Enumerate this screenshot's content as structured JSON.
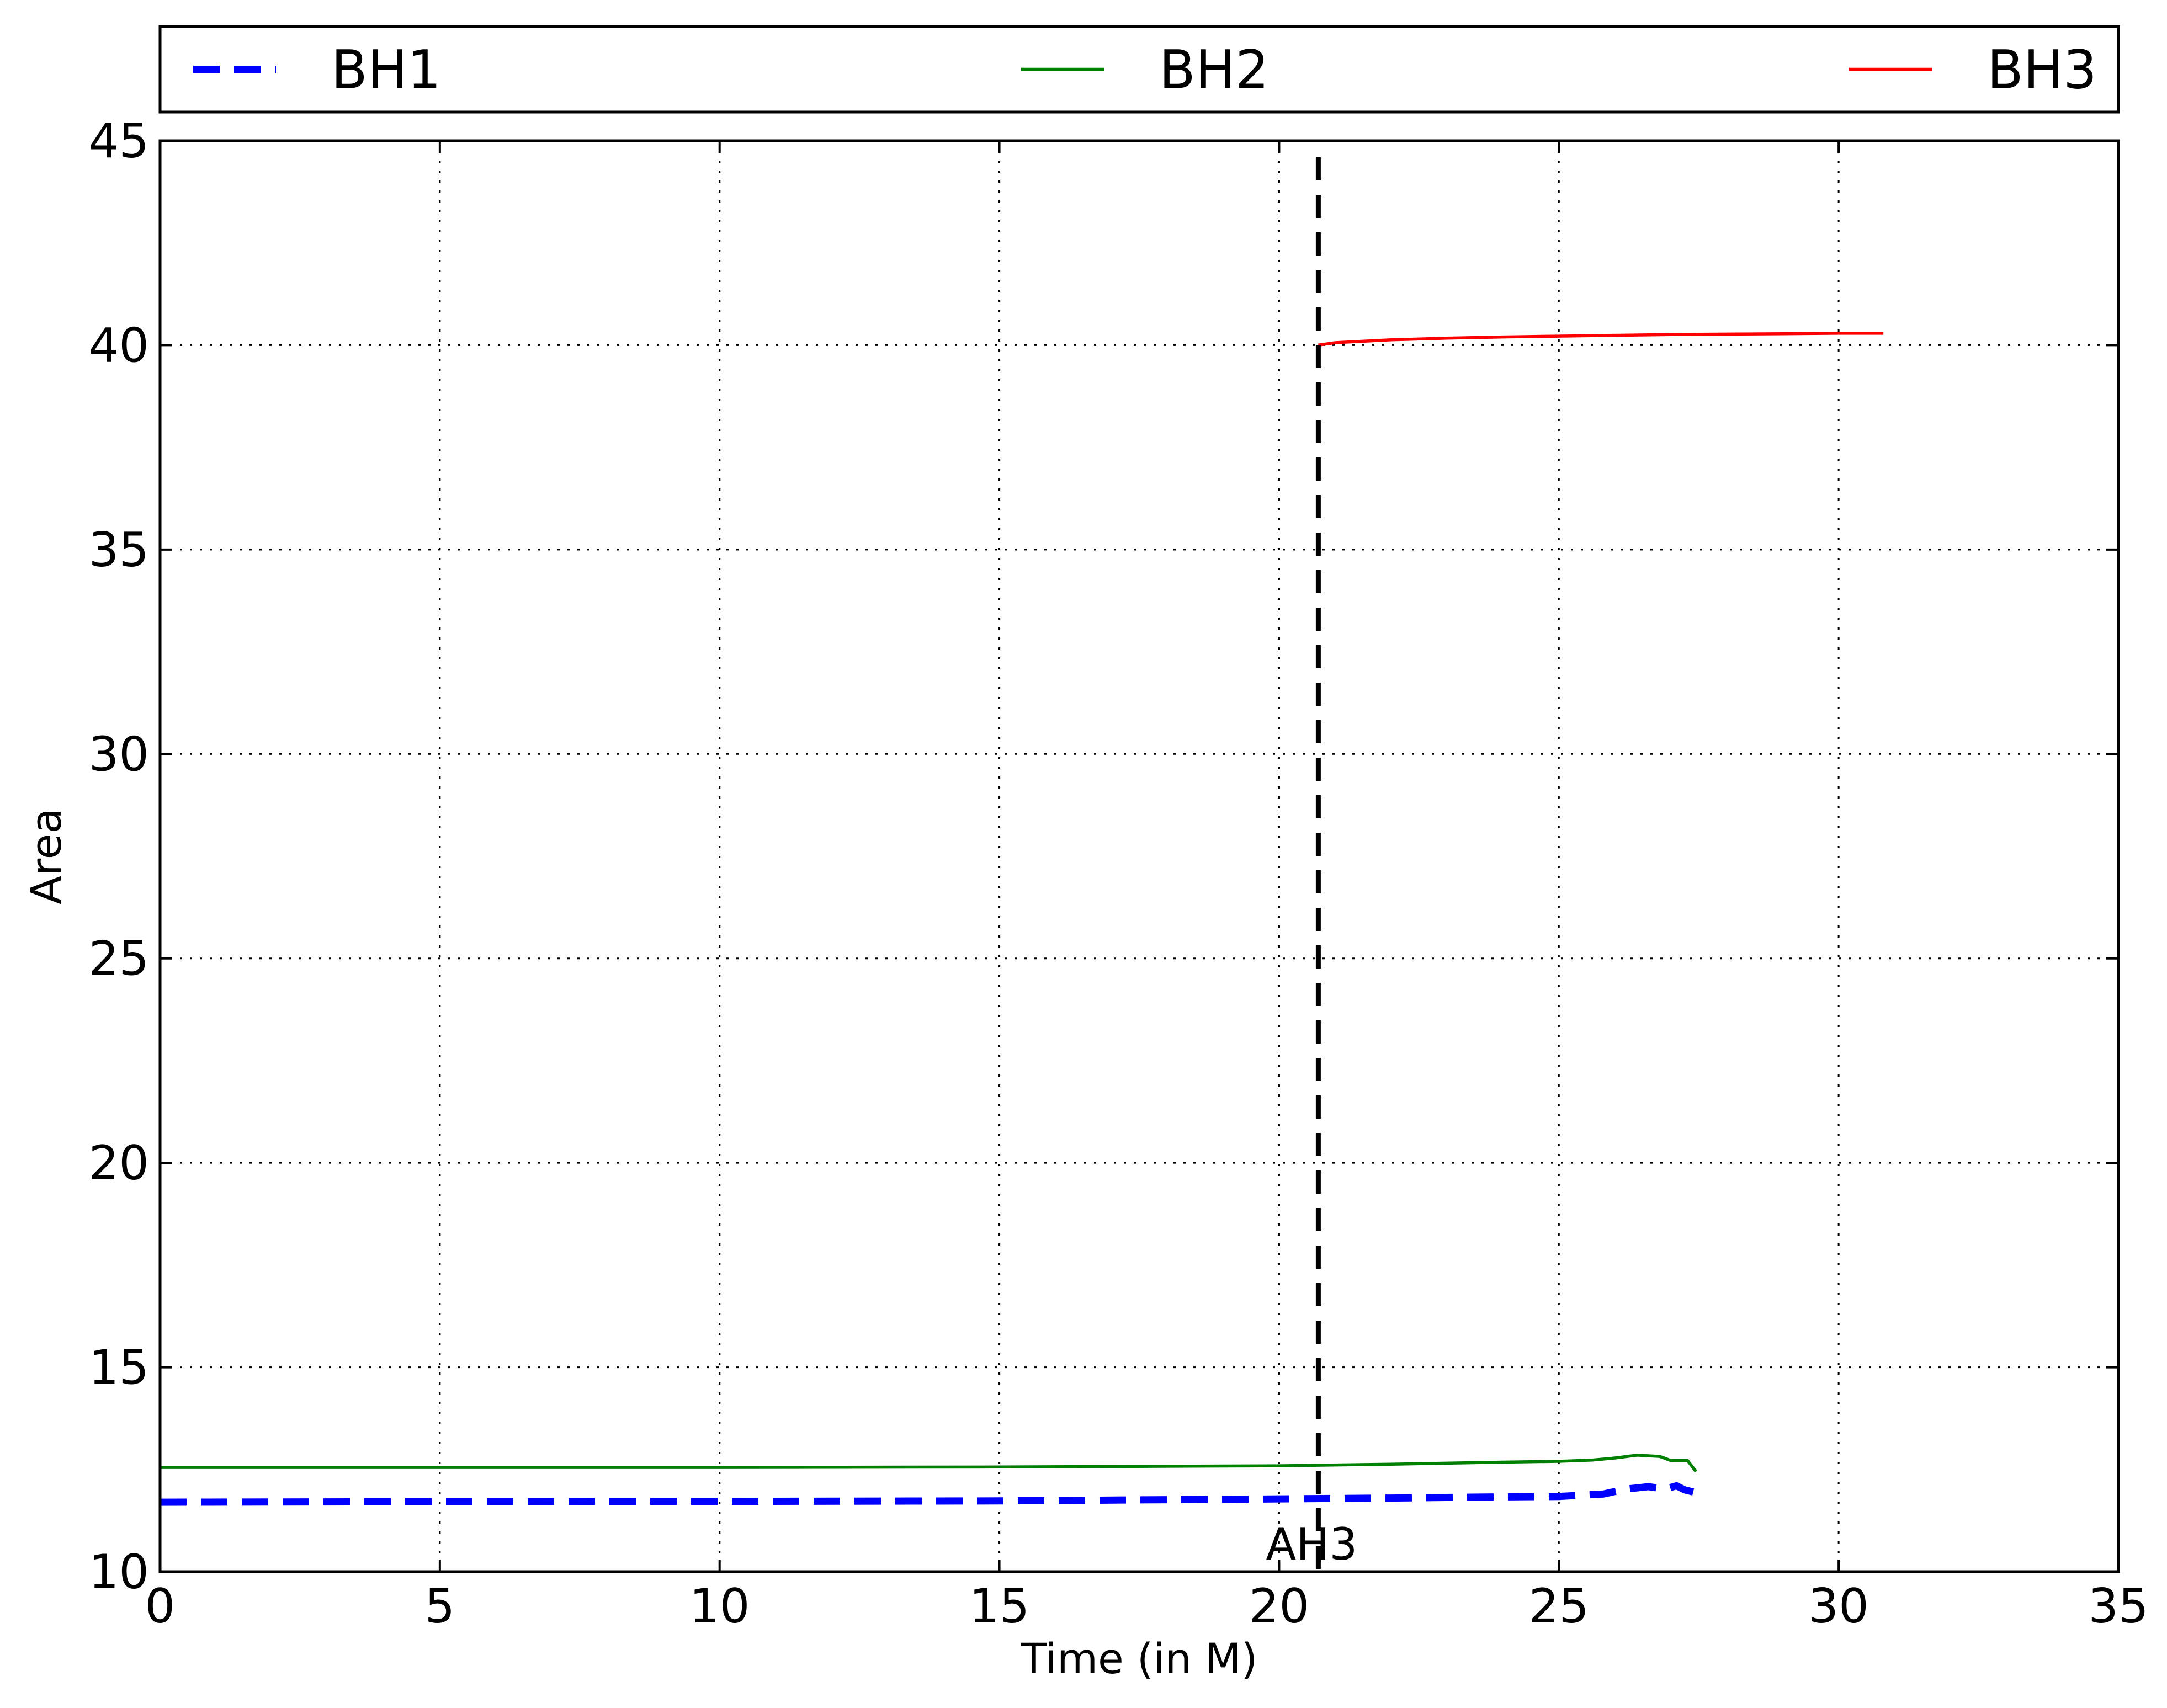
{
  "chart_data": {
    "type": "line",
    "title": "",
    "xlabel": "Time (in M)",
    "ylabel": "Area",
    "xlim": [
      0,
      35
    ],
    "ylim": [
      10,
      45
    ],
    "xticks": [
      0,
      5,
      10,
      15,
      20,
      25,
      30,
      35
    ],
    "xtick_labels": [
      "0",
      "5",
      "10",
      "15",
      "20",
      "25",
      "30",
      "35"
    ],
    "yticks": [
      10,
      15,
      20,
      25,
      30,
      35,
      40,
      45
    ],
    "ytick_labels": [
      "10",
      "15",
      "20",
      "25",
      "30",
      "35",
      "40",
      "45"
    ],
    "grid": true,
    "legend_position": "top, above plot, horizontal",
    "series": [
      {
        "name": "BH1",
        "color": "#0000ff",
        "style": "dashed",
        "points": [
          [
            0,
            11.7
          ],
          [
            5,
            11.71
          ],
          [
            10,
            11.72
          ],
          [
            15,
            11.73
          ],
          [
            20,
            11.78
          ],
          [
            22,
            11.8
          ],
          [
            24,
            11.83
          ],
          [
            25,
            11.84
          ],
          [
            25.8,
            11.9
          ],
          [
            26.2,
            12.02
          ],
          [
            26.6,
            12.08
          ],
          [
            26.9,
            12.02
          ],
          [
            27.1,
            12.1
          ],
          [
            27.25,
            12.0
          ],
          [
            27.4,
            11.95
          ]
        ]
      },
      {
        "name": "BH2",
        "color": "#008000",
        "style": "solid",
        "points": [
          [
            0,
            12.55
          ],
          [
            5,
            12.55
          ],
          [
            10,
            12.55
          ],
          [
            15,
            12.56
          ],
          [
            20,
            12.59
          ],
          [
            22,
            12.63
          ],
          [
            24,
            12.68
          ],
          [
            25,
            12.7
          ],
          [
            25.6,
            12.73
          ],
          [
            26.0,
            12.78
          ],
          [
            26.4,
            12.85
          ],
          [
            26.8,
            12.82
          ],
          [
            27.0,
            12.72
          ],
          [
            27.3,
            12.72
          ],
          [
            27.45,
            12.45
          ]
        ]
      },
      {
        "name": "BH3",
        "color": "#ff0000",
        "style": "solid",
        "points": [
          [
            20.7,
            40.0
          ],
          [
            21.0,
            40.06
          ],
          [
            22,
            40.13
          ],
          [
            23,
            40.17
          ],
          [
            24,
            40.2
          ],
          [
            25,
            40.22
          ],
          [
            26,
            40.24
          ],
          [
            27,
            40.26
          ],
          [
            28,
            40.27
          ],
          [
            29,
            40.28
          ],
          [
            30,
            40.29
          ],
          [
            30.8,
            40.29
          ]
        ]
      }
    ],
    "annotations": [
      {
        "type": "vline",
        "x": 20.7,
        "color": "#000000",
        "style": "dashed",
        "label": "AH3"
      }
    ]
  }
}
